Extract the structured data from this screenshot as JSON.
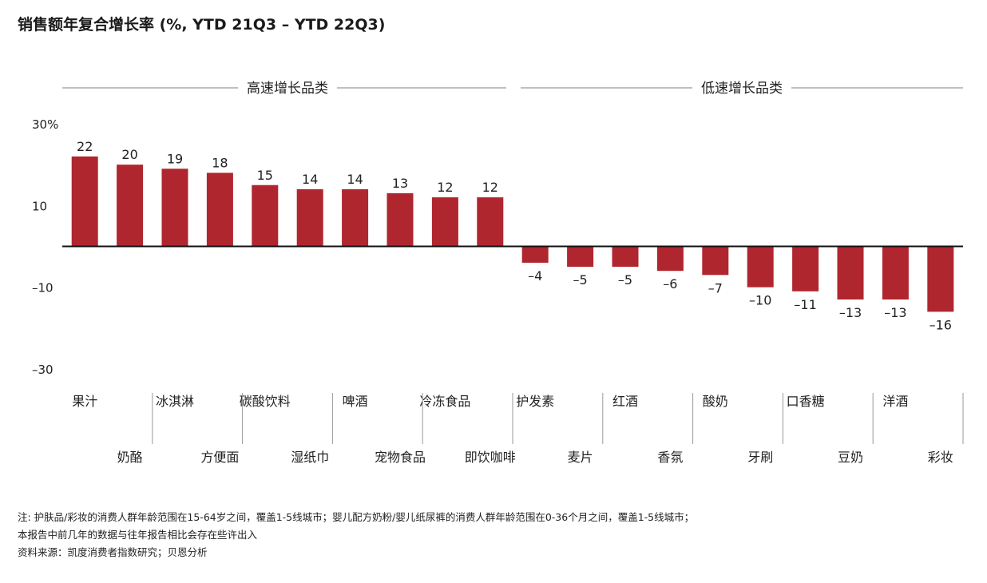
{
  "chart_data": {
    "type": "bar",
    "title": "销售额年复合增长率 (%, YTD 21Q3 – YTD 22Q3)",
    "xlabel": "",
    "ylabel": "",
    "ylim": [
      -30,
      30
    ],
    "y_ticks": [
      {
        "value": 30,
        "label": "30%"
      },
      {
        "value": 10,
        "label": "10"
      },
      {
        "value": -10,
        "label": "–10"
      },
      {
        "value": -30,
        "label": "–30"
      }
    ],
    "groups": [
      {
        "name": "高速增长品类",
        "start": 0,
        "end": 9
      },
      {
        "name": "低速增长品类",
        "start": 10,
        "end": 19
      }
    ],
    "categories": [
      "果汁",
      "奶酪",
      "冰淇淋",
      "方便面",
      "碳酸饮料",
      "湿纸巾",
      "啤酒",
      "宠物食品",
      "冷冻食品",
      "即饮咖啡",
      "护发素",
      "麦片",
      "红酒",
      "香氛",
      "酸奶",
      "牙刷",
      "口香糖",
      "豆奶",
      "洋酒",
      "彩妆"
    ],
    "values": [
      22,
      20,
      19,
      18,
      15,
      14,
      14,
      13,
      12,
      12,
      -4,
      -5,
      -5,
      -6,
      -7,
      -10,
      -11,
      -13,
      -13,
      -16
    ],
    "value_labels": [
      "22",
      "20",
      "19",
      "18",
      "15",
      "14",
      "14",
      "13",
      "12",
      "12",
      "–4",
      "–5",
      "–5",
      "–6",
      "–7",
      "–10",
      "–11",
      "–13",
      "–13",
      "–16"
    ],
    "bar_color": "#b0262e",
    "grid": false,
    "legend": "none"
  },
  "footnotes": [
    "注: 护肤品/彩妆的消费人群年龄范围在15-64岁之间，覆盖1-5线城市；婴儿配方奶粉/婴儿纸尿裤的消费人群年龄范围在0-36个月之间，覆盖1-5线城市；",
    "本报告中前几年的数据与往年报告相比会存在些许出入",
    "资料来源：凯度消费者指数研究；贝恩分析"
  ]
}
